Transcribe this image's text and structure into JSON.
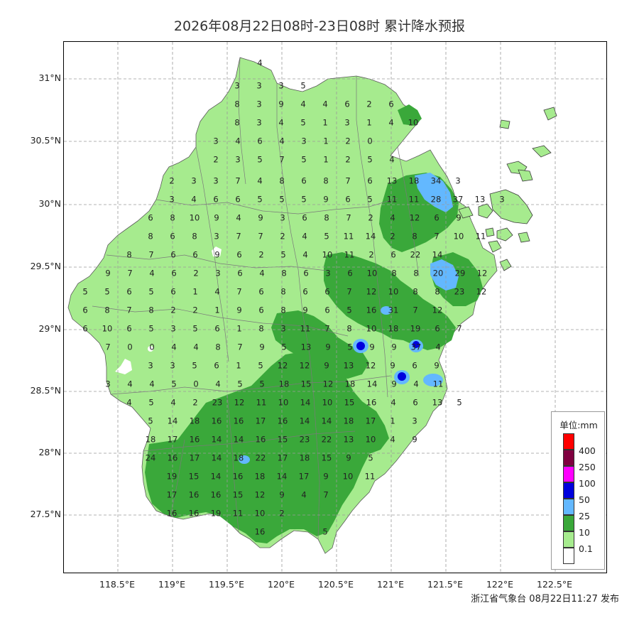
{
  "title": "2026年08月22日08时-23日08时 累计降水预报",
  "footer": "浙江省气象台 08月22日11:27 发布",
  "lat_labels": [
    "31°N",
    "30.5°N",
    "30°N",
    "29.5°N",
    "29°N",
    "28.5°N",
    "28°N",
    "27.5°N"
  ],
  "lon_labels": [
    "118.5°E",
    "119°E",
    "119.5°E",
    "120°E",
    "120.5°E",
    "121°E",
    "121.5°E",
    "122°E",
    "122.5°E"
  ],
  "legend": {
    "title": "单位:mm",
    "items": [
      {
        "label": "400",
        "color": "#ff0000"
      },
      {
        "label": "250",
        "color": "#800040"
      },
      {
        "label": "100",
        "color": "#ff00ff"
      },
      {
        "label": "50",
        "color": "#0000dd"
      },
      {
        "label": "25",
        "color": "#63b8ff"
      },
      {
        "label": "10",
        "color": "#3aa83a"
      },
      {
        "label": "0.1",
        "color": "#a6eb8e"
      },
      {
        "label": "",
        "color": "#ffffff"
      }
    ]
  },
  "colors": {
    "light_rain": "#a6eb8e",
    "moderate_rain": "#3aa83a",
    "heavy_rain": "#63b8ff",
    "storm_rain": "#0000dd",
    "grid": "#9a9a9a",
    "county_border": "#7a7a7a"
  },
  "station_values": [
    [
      "4"
    ],
    [
      "3",
      "3",
      "3",
      "5"
    ],
    [
      "8",
      "3",
      "9",
      "4",
      "4",
      "6",
      "2",
      "6"
    ],
    [
      "8",
      "3",
      "4",
      "5",
      "1",
      "3",
      "1",
      "4",
      "10"
    ],
    [
      "3",
      "4",
      "6",
      "4",
      "3",
      "1",
      "2",
      "0"
    ],
    [
      "2",
      "3",
      "5",
      "7",
      "5",
      "1",
      "2",
      "5",
      "4"
    ],
    [
      "2",
      "3",
      "3",
      "7",
      "4",
      "8",
      "6",
      "8",
      "7",
      "6",
      "13",
      "18",
      "34",
      "3"
    ],
    [
      "3",
      "4",
      "6",
      "6",
      "5",
      "5",
      "5",
      "9",
      "6",
      "5",
      "11",
      "11",
      "28",
      "37",
      "13",
      "3"
    ],
    [
      "6",
      "8",
      "10",
      "9",
      "4",
      "9",
      "3",
      "6",
      "8",
      "7",
      "2",
      "4",
      "12",
      "6",
      "9"
    ],
    [
      "8",
      "6",
      "8",
      "3",
      "7",
      "7",
      "2",
      "4",
      "5",
      "11",
      "14",
      "2",
      "8",
      "7",
      "10",
      "11"
    ],
    [
      "8",
      "7",
      "6",
      "6",
      "9",
      "6",
      "2",
      "5",
      "4",
      "10",
      "11",
      "2",
      "6",
      "22",
      "14"
    ],
    [
      "9",
      "7",
      "4",
      "6",
      "2",
      "3",
      "6",
      "4",
      "8",
      "6",
      "3",
      "6",
      "10",
      "8",
      "8",
      "20",
      "29",
      "12"
    ],
    [
      "5",
      "5",
      "6",
      "5",
      "6",
      "1",
      "4",
      "7",
      "6",
      "8",
      "6",
      "6",
      "7",
      "12",
      "10",
      "8",
      "8",
      "23",
      "12"
    ],
    [
      "6",
      "8",
      "7",
      "8",
      "2",
      "2",
      "1",
      "9",
      "6",
      "8",
      "9",
      "6",
      "5",
      "16",
      "31",
      "7",
      "12"
    ],
    [
      "6",
      "10",
      "6",
      "5",
      "3",
      "5",
      "6",
      "1",
      "8",
      "3",
      "11",
      "7",
      "8",
      "10",
      "18",
      "19",
      "6",
      "7"
    ],
    [
      "7",
      "0",
      "0",
      "4",
      "4",
      "8",
      "7",
      "9",
      "5",
      "13",
      "9",
      "5",
      "9",
      "9",
      "37",
      "4"
    ],
    [
      "3",
      "3",
      "5",
      "6",
      "1",
      "5",
      "12",
      "12",
      "9",
      "13",
      "12",
      "9",
      "6",
      "9"
    ],
    [
      "3",
      "4",
      "4",
      "5",
      "0",
      "4",
      "5",
      "5",
      "18",
      "15",
      "12",
      "18",
      "14",
      "9",
      "4",
      "11"
    ],
    [
      "4",
      "5",
      "4",
      "2",
      "23",
      "12",
      "11",
      "10",
      "14",
      "10",
      "15",
      "16",
      "4",
      "6",
      "13",
      "5"
    ],
    [
      "5",
      "14",
      "18",
      "16",
      "16",
      "17",
      "16",
      "14",
      "14",
      "18",
      "17",
      "1",
      "3"
    ],
    [
      "18",
      "17",
      "16",
      "14",
      "14",
      "16",
      "15",
      "23",
      "22",
      "13",
      "10",
      "4",
      "9"
    ],
    [
      "24",
      "16",
      "17",
      "14",
      "18",
      "22",
      "17",
      "18",
      "15",
      "9",
      "5"
    ],
    [
      "19",
      "15",
      "14",
      "16",
      "18",
      "14",
      "17",
      "9",
      "10",
      "11"
    ],
    [
      "17",
      "16",
      "16",
      "15",
      "12",
      "9",
      "4",
      "7"
    ],
    [
      "16",
      "16",
      "19",
      "11",
      "10",
      "2"
    ],
    [
      "16",
      "5"
    ]
  ]
}
